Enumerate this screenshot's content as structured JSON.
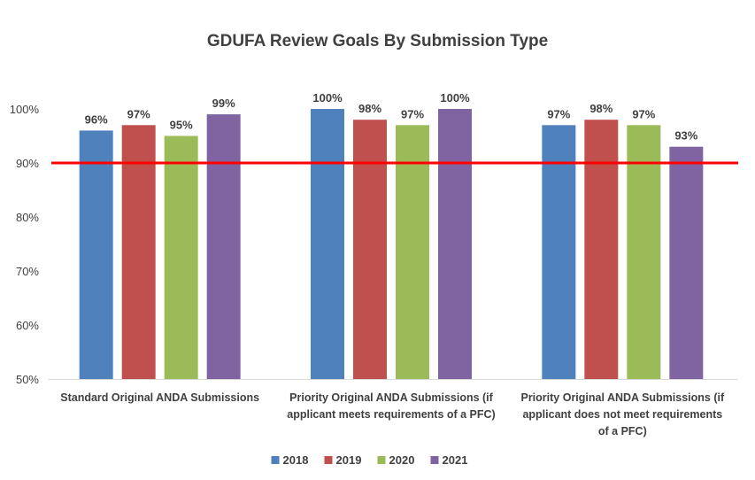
{
  "chart_data": {
    "type": "bar",
    "title": "GDUFA Review Goals By Submission Type",
    "categories": [
      [
        "Standard Original ANDA Submissions"
      ],
      [
        "Priority Original ANDA Submissions (if",
        "applicant meets requirements of a PFC)"
      ],
      [
        "Priority Original ANDA Submissions (if",
        "applicant does not meet requirements",
        "of a PFC)"
      ]
    ],
    "series": [
      {
        "name": "2018",
        "values": [
          96,
          100,
          97
        ],
        "color": "#4F81BD"
      },
      {
        "name": "2019",
        "values": [
          97,
          98,
          98
        ],
        "color": "#C0504D"
      },
      {
        "name": "2020",
        "values": [
          95,
          97,
          97
        ],
        "color": "#9BBB59"
      },
      {
        "name": "2021",
        "values": [
          99,
          100,
          93
        ],
        "color": "#8064A2"
      }
    ],
    "data_label_suffix": "%",
    "ylim": [
      50,
      100
    ],
    "yticks": [
      "50%",
      "60%",
      "70%",
      "80%",
      "90%",
      "100%"
    ],
    "reference_line": {
      "value": 90,
      "color": "#FF0000"
    },
    "grid": false,
    "legend_position": "bottom"
  }
}
